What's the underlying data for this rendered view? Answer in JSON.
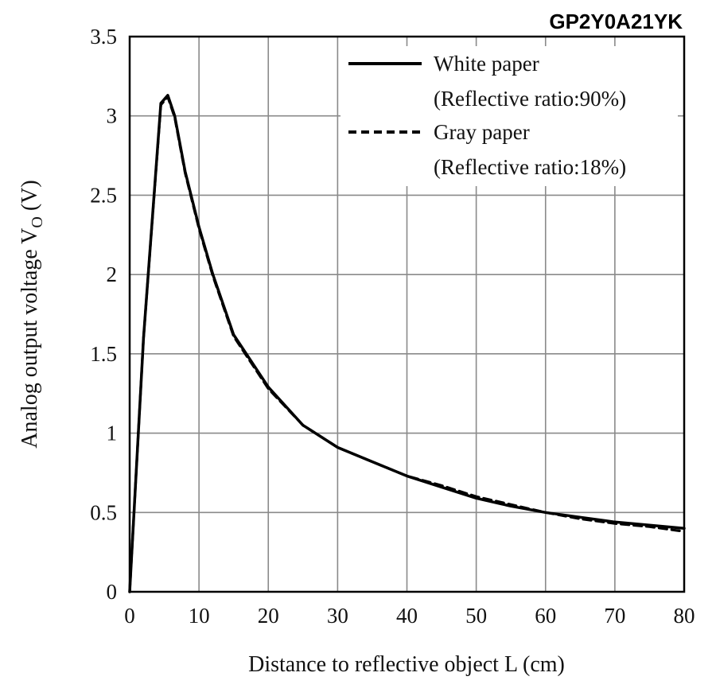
{
  "chart_data": {
    "type": "line",
    "title": "GP2Y0A21YK",
    "xlabel": "Distance to reflective object L (cm)",
    "ylabel_main": "Analog output voltage V",
    "ylabel_sub": "O",
    "ylabel_unit": "(V)",
    "xlim": [
      0,
      80
    ],
    "ylim": [
      0,
      3.5
    ],
    "xticks": [
      0,
      10,
      20,
      30,
      40,
      50,
      60,
      70,
      80
    ],
    "yticks": [
      0,
      0.5,
      1,
      1.5,
      2,
      2.5,
      3,
      3.5
    ],
    "ytick_labels": [
      "0",
      "0.5",
      "1",
      "1.5",
      "2",
      "2.5",
      "3",
      "3.5"
    ],
    "grid": true,
    "legend_position": "top-right",
    "series": [
      {
        "name": "White paper",
        "legend_line1": "White paper",
        "legend_line2": "(Reflective ratio:90%)",
        "style": "solid",
        "color": "#000000",
        "x": [
          0,
          2,
          4.5,
          5.5,
          6.5,
          8,
          10,
          12,
          15,
          20,
          25,
          30,
          35,
          40,
          45,
          50,
          55,
          60,
          65,
          70,
          75,
          80
        ],
        "y": [
          0,
          1.6,
          3.08,
          3.13,
          3.0,
          2.65,
          2.3,
          2.0,
          1.62,
          1.29,
          1.05,
          0.91,
          0.82,
          0.73,
          0.66,
          0.59,
          0.54,
          0.5,
          0.47,
          0.44,
          0.42,
          0.4
        ]
      },
      {
        "name": "Gray paper",
        "legend_line1": "Gray paper",
        "legend_line2": "(Reflective ratio:18%)",
        "style": "dashed",
        "color": "#000000",
        "x": [
          0,
          2,
          4.5,
          5.5,
          6.5,
          8,
          10,
          12,
          15,
          20,
          25,
          30,
          35,
          40,
          45,
          50,
          55,
          60,
          65,
          70,
          75,
          80
        ],
        "y": [
          0,
          1.6,
          3.07,
          3.12,
          2.99,
          2.64,
          2.29,
          1.99,
          1.61,
          1.28,
          1.05,
          0.91,
          0.82,
          0.73,
          0.67,
          0.6,
          0.55,
          0.5,
          0.46,
          0.43,
          0.41,
          0.38
        ]
      }
    ]
  }
}
